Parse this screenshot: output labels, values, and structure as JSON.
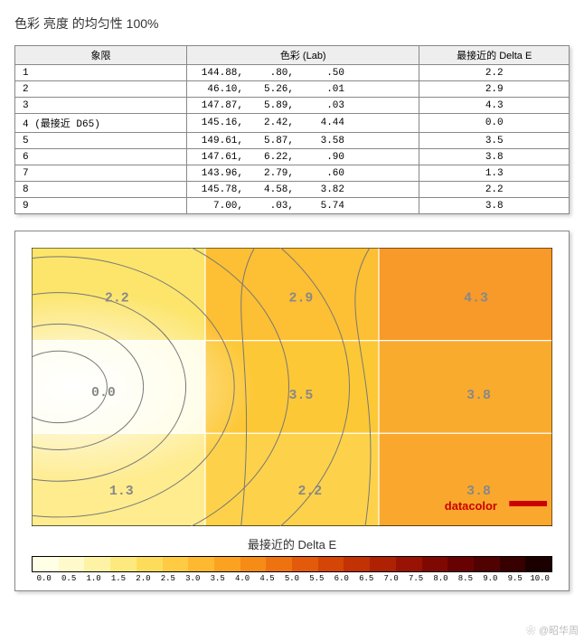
{
  "title": "色彩 亮度 的均匀性 100%",
  "table": {
    "headers": [
      "象限",
      "色彩 (Lab)",
      "最接近的 Delta E"
    ],
    "rows": [
      {
        "q": "1",
        "lab": [
          "144.88,",
          ".80,",
          ".50"
        ],
        "de": "2.2"
      },
      {
        "q": "2",
        "lab": [
          "46.10,",
          "5.26,",
          ".01"
        ],
        "de": "2.9"
      },
      {
        "q": "3",
        "lab": [
          "147.87,",
          "5.89,",
          ".03"
        ],
        "de": "4.3"
      },
      {
        "q": "4 (最接近 D65)",
        "lab": [
          "145.16,",
          "2.42,",
          "4.44"
        ],
        "de": "0.0"
      },
      {
        "q": "5",
        "lab": [
          "149.61,",
          "5.87,",
          "3.58"
        ],
        "de": "3.5"
      },
      {
        "q": "6",
        "lab": [
          "147.61,",
          "6.22,",
          ".90"
        ],
        "de": "3.8"
      },
      {
        "q": "7",
        "lab": [
          "143.96,",
          "2.79,",
          ".60"
        ],
        "de": "1.3"
      },
      {
        "q": "8",
        "lab": [
          "145.78,",
          "4.58,",
          "3.82"
        ],
        "de": "2.2"
      },
      {
        "q": "9",
        "lab": [
          "7.00,",
          ".03,",
          "5.74"
        ],
        "de": "3.8"
      }
    ]
  },
  "heatmap": {
    "type": "heatmap",
    "cols": 3,
    "rows": 3,
    "values": [
      [
        2.2,
        2.9,
        4.3
      ],
      [
        0.0,
        3.5,
        3.8
      ],
      [
        1.3,
        2.2,
        3.8
      ]
    ],
    "cell_labels": [
      [
        "2.2",
        "2.9",
        "4.3"
      ],
      [
        "0.0",
        "3.5",
        "3.8"
      ],
      [
        "1.3",
        "2.2",
        "3.8"
      ]
    ],
    "cell_colors": [
      [
        "#fce56a",
        "#fdbf33",
        "#f79a2a"
      ],
      [
        "#fffde2",
        "#fdc836",
        "#f9ab2e"
      ],
      [
        "#feec8f",
        "#fdd24a",
        "#f9a82d"
      ]
    ],
    "grid_color": "#ffffff",
    "contour_color": "#777777",
    "label_color": "#888888",
    "label_fontsize": 15,
    "brand": "datacolor",
    "brand_color": "#cc0000"
  },
  "chart_caption": "最接近的 Delta E",
  "colorbar": {
    "ticks": [
      "0.0",
      "0.5",
      "1.0",
      "1.5",
      "2.0",
      "2.5",
      "3.0",
      "3.5",
      "4.0",
      "4.5",
      "5.0",
      "5.5",
      "6.0",
      "6.5",
      "7.0",
      "7.5",
      "8.0",
      "8.5",
      "9.0",
      "9.5",
      "10.0"
    ],
    "colors": [
      "#ffffe5",
      "#fffacb",
      "#fef3a5",
      "#fee97e",
      "#fedc5b",
      "#fecb42",
      "#feb930",
      "#fba321",
      "#f68b16",
      "#ee730f",
      "#e35b0a",
      "#d44506",
      "#c23204",
      "#ae2103",
      "#981303",
      "#800802",
      "#680202",
      "#500101",
      "#380000",
      "#1c0000"
    ]
  },
  "watermark": "❀ @昭华周"
}
